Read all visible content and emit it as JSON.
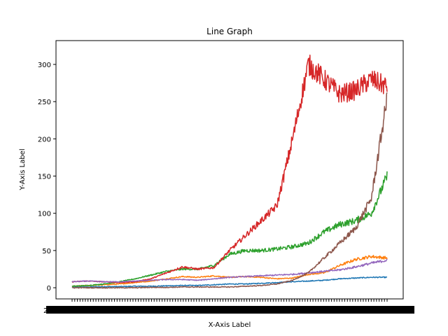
{
  "chart_data": {
    "type": "line",
    "title": "Line Graph",
    "xlabel": "X-Axis Label",
    "ylabel": "Y-Axis Label",
    "ylim": [
      -15,
      332
    ],
    "yticks": [
      0,
      50,
      100,
      150,
      200,
      250,
      300
    ],
    "ytick_labels": [
      "0",
      "50",
      "100",
      "150",
      "200",
      "250",
      "300"
    ],
    "x_tick_text": "2",
    "x_tick_note": "x tick labels are overlapping dates rendered as a solid black band",
    "grid": false,
    "legend": "none",
    "x_points": [
      0,
      0.05,
      0.1,
      0.15,
      0.2,
      0.25,
      0.3,
      0.35,
      0.4,
      0.45,
      0.5,
      0.55,
      0.6,
      0.65,
      0.7,
      0.75,
      0.8,
      0.85,
      0.9,
      0.95,
      1.0
    ],
    "series": [
      {
        "color": "#1f77b4",
        "values": [
          1,
          1,
          1.5,
          1.5,
          2,
          2,
          2.5,
          3,
          3,
          4,
          5,
          5,
          6,
          7,
          8,
          9,
          10,
          12,
          13,
          14,
          14
        ]
      },
      {
        "color": "#ff7f0e",
        "values": [
          2,
          3,
          4,
          5,
          7,
          9,
          12,
          15,
          14,
          16,
          14,
          15,
          14,
          12,
          13,
          18,
          20,
          30,
          38,
          42,
          40
        ]
      },
      {
        "color": "#2ca02c",
        "values": [
          2,
          3,
          5,
          8,
          12,
          17,
          22,
          25,
          25,
          30,
          45,
          50,
          50,
          52,
          55,
          60,
          75,
          85,
          90,
          100,
          150
        ]
      },
      {
        "color": "#d62728",
        "values": [
          8,
          9,
          8,
          7,
          8,
          12,
          20,
          28,
          25,
          27,
          50,
          70,
          90,
          110,
          200,
          300,
          280,
          260,
          265,
          280,
          270
        ]
      },
      {
        "color": "#9467bd",
        "values": [
          8,
          9,
          8,
          8,
          9,
          10,
          11,
          11,
          10,
          12,
          14,
          15,
          16,
          17,
          18,
          20,
          22,
          24,
          28,
          33,
          37
        ]
      },
      {
        "color": "#8c564b",
        "values": [
          0,
          0,
          0,
          0,
          0,
          0.5,
          0.5,
          1,
          1,
          1,
          1,
          2,
          3,
          5,
          10,
          20,
          40,
          60,
          80,
          120,
          255
        ]
      }
    ]
  }
}
